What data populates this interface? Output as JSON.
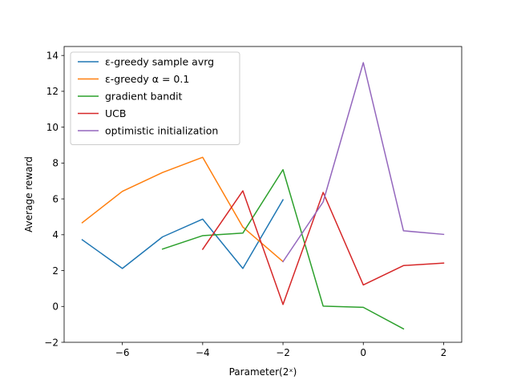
{
  "chart_data": {
    "type": "line",
    "xlabel": "Parameter(2ˣ)",
    "ylabel": "Average reward",
    "xlim": [
      -7.45,
      2.45
    ],
    "ylim": [
      -2,
      14.5
    ],
    "xticks": [
      -6,
      -4,
      -2,
      0,
      2
    ],
    "xtick_labels": [
      "−6",
      "−4",
      "−2",
      "0",
      "2"
    ],
    "yticks": [
      -2,
      0,
      2,
      4,
      6,
      8,
      10,
      12,
      14
    ],
    "ytick_labels": [
      "−2",
      "0",
      "2",
      "4",
      "6",
      "8",
      "10",
      "12",
      "14"
    ],
    "grid": false,
    "legend_position": "top-left",
    "series": [
      {
        "name": "ε-greedy sample avrg",
        "color": "#1f77b4",
        "x": [
          -7,
          -6,
          -5,
          -4,
          -3,
          -2
        ],
        "values": [
          3.72,
          2.12,
          3.88,
          4.87,
          2.12,
          5.95
        ]
      },
      {
        "name": "ε-greedy α = 0.1",
        "color": "#ff7f0e",
        "x": [
          -7,
          -6,
          -5,
          -4,
          -3,
          -2
        ],
        "values": [
          4.67,
          6.42,
          7.47,
          8.32,
          4.43,
          2.5
        ]
      },
      {
        "name": "gradient bandit",
        "color": "#2ca02c",
        "x": [
          -5,
          -4,
          -3,
          -2,
          -1,
          0,
          1
        ],
        "values": [
          3.2,
          3.95,
          4.09,
          7.63,
          0.02,
          -0.05,
          -1.25
        ]
      },
      {
        "name": "UCB",
        "color": "#d62728",
        "x": [
          -4,
          -3,
          -2,
          -1,
          0,
          1,
          2
        ],
        "values": [
          3.19,
          6.45,
          0.11,
          6.36,
          1.2,
          2.28,
          2.42
        ]
      },
      {
        "name": "optimistic initialization",
        "color": "#9467bd",
        "x": [
          -2,
          -1,
          0,
          1,
          2
        ],
        "values": [
          2.5,
          5.83,
          13.6,
          4.22,
          4.02
        ]
      }
    ]
  }
}
